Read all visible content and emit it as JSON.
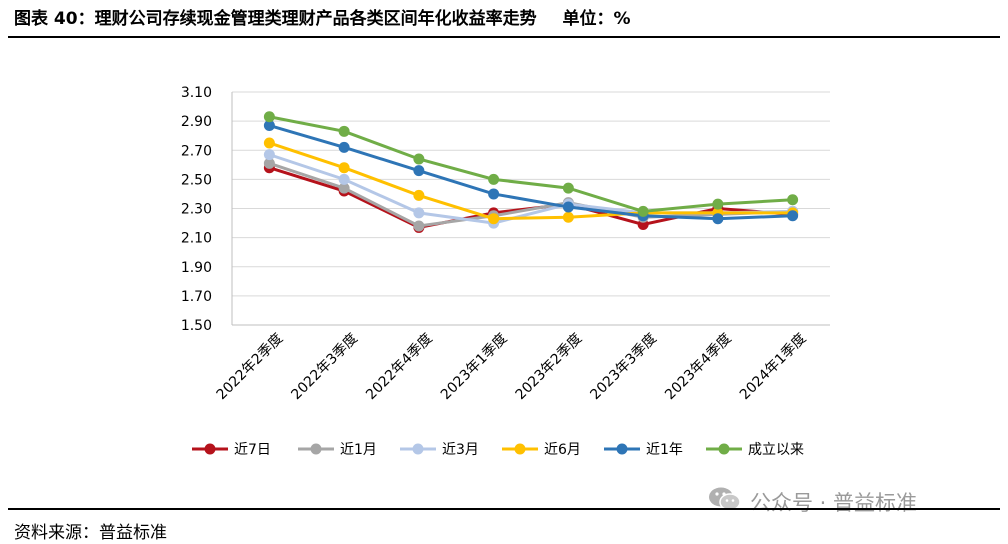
{
  "header": {
    "title": "图表 40：理财公司存续现金管理类理财产品各类区间年化收益率走势",
    "unit": "单位：%"
  },
  "footer": {
    "source": "资料来源：普益标准",
    "watermark": "公众号 · 普益标准"
  },
  "chart_data": {
    "type": "line",
    "title": "",
    "xlabel": "",
    "ylabel": "",
    "ylim": [
      1.5,
      3.1
    ],
    "yticks": [
      "3.10",
      "2.90",
      "2.70",
      "2.50",
      "2.30",
      "2.10",
      "1.90",
      "1.70",
      "1.50"
    ],
    "grid": true,
    "legend_position": "bottom",
    "categories": [
      "2022年2季度",
      "2022年3季度",
      "2022年4季度",
      "2023年1季度",
      "2023年2季度",
      "2023年3季度",
      "2023年4季度",
      "2024年1季度"
    ],
    "series": [
      {
        "name": "近7日",
        "color": "#b5121b",
        "values": [
          2.58,
          2.42,
          2.17,
          2.27,
          2.33,
          2.19,
          2.3,
          2.26
        ]
      },
      {
        "name": "近1月",
        "color": "#a6a6a6",
        "values": [
          2.61,
          2.44,
          2.18,
          2.25,
          2.34,
          2.24,
          2.26,
          2.28
        ]
      },
      {
        "name": "近3月",
        "color": "#b4c7e7",
        "values": [
          2.67,
          2.5,
          2.27,
          2.2,
          2.33,
          2.27,
          2.27,
          2.28
        ]
      },
      {
        "name": "近6月",
        "color": "#ffc000",
        "values": [
          2.75,
          2.58,
          2.39,
          2.23,
          2.24,
          2.27,
          2.27,
          2.27
        ]
      },
      {
        "name": "近1年",
        "color": "#2e75b6",
        "values": [
          2.87,
          2.72,
          2.56,
          2.4,
          2.31,
          2.25,
          2.23,
          2.25
        ]
      },
      {
        "name": "成立以来",
        "color": "#70ad47",
        "values": [
          2.93,
          2.83,
          2.64,
          2.5,
          2.44,
          2.28,
          2.33,
          2.36
        ]
      }
    ]
  }
}
